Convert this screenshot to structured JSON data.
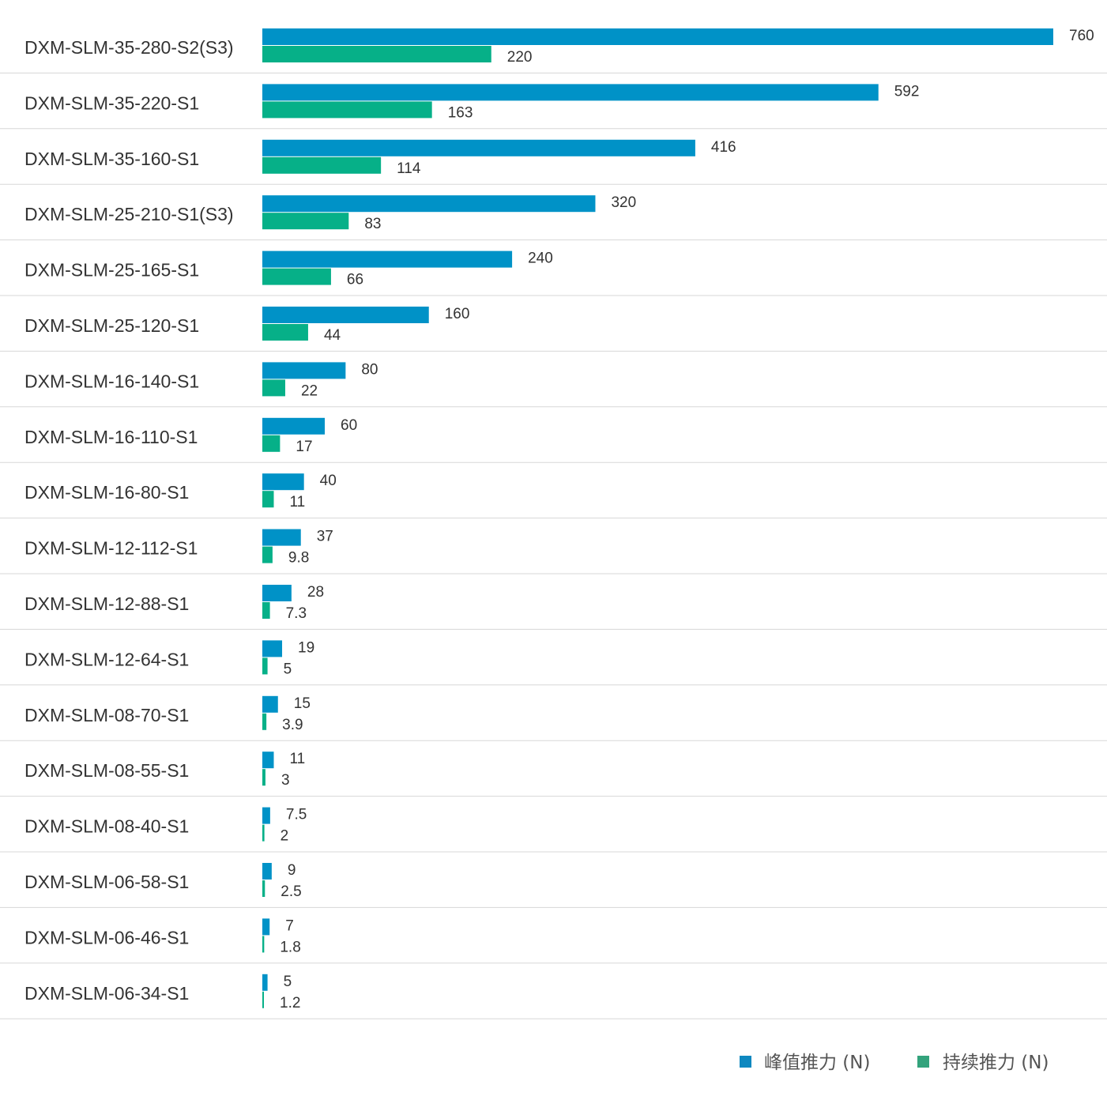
{
  "chart_data": {
    "type": "bar",
    "orientation": "horizontal",
    "categories": [
      "DXM-SLM-35-280-S2(S3)",
      "DXM-SLM-35-220-S1",
      "DXM-SLM-35-160-S1",
      "DXM-SLM-25-210-S1(S3)",
      "DXM-SLM-25-165-S1",
      "DXM-SLM-25-120-S1",
      "DXM-SLM-16-140-S1",
      "DXM-SLM-16-110-S1",
      "DXM-SLM-16-80-S1",
      "DXM-SLM-12-112-S1",
      "DXM-SLM-12-88-S1",
      "DXM-SLM-12-64-S1",
      "DXM-SLM-08-70-S1",
      "DXM-SLM-08-55-S1",
      "DXM-SLM-08-40-S1",
      "DXM-SLM-06-58-S1",
      "DXM-SLM-06-46-S1",
      "DXM-SLM-06-34-S1"
    ],
    "series": [
      {
        "name": "峰值推力 (N)",
        "color": "#0092C7",
        "values": [
          760,
          592,
          416,
          320,
          240,
          160,
          80,
          60,
          40,
          37,
          28,
          19,
          15,
          11,
          7.5,
          9,
          7,
          5
        ],
        "labels": [
          "760",
          "592",
          "416",
          "320",
          "240",
          "160",
          "80",
          "60",
          "40",
          "37",
          "28",
          "19",
          "15",
          "11",
          "7.5",
          "9",
          "7",
          "5"
        ]
      },
      {
        "name": "持续推力 (N)",
        "color": "#06B088",
        "values": [
          220,
          163,
          114,
          83,
          66,
          44,
          22,
          17,
          11,
          9.8,
          7.3,
          5,
          3.9,
          3,
          2,
          2.5,
          1.8,
          1.2
        ],
        "labels": [
          "220",
          "163",
          "114",
          "83",
          "66",
          "44",
          "22",
          "17",
          "11",
          "9.8",
          "7.3",
          "5",
          "3.9",
          "3",
          "2",
          "2.5",
          "1.8",
          "1.2"
        ]
      }
    ],
    "title": "",
    "xlabel": "",
    "ylabel": "",
    "axis_visible": false,
    "grid": false,
    "row_separators": true,
    "legend": {
      "position": "bottom-right",
      "marker_colors": [
        "#0E88C0",
        "#33A37C"
      ]
    },
    "separator_color": "#D7D7D7"
  }
}
